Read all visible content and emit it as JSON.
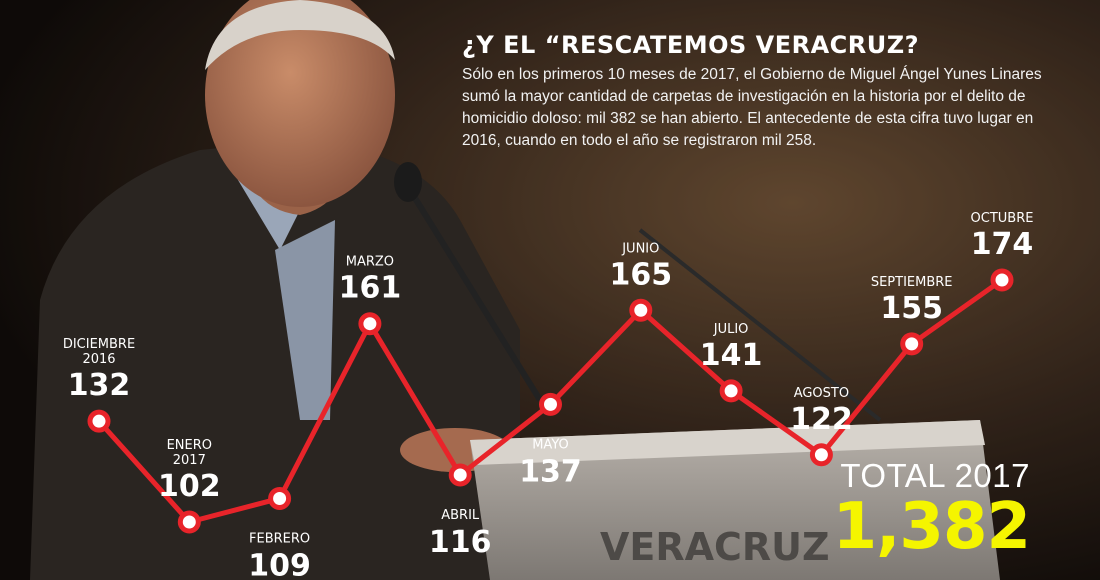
{
  "headline": {
    "title": "¿Y EL “RESCATEMOS VERACRUZ?",
    "body": "Sólo en los primeros 10 meses de 2017, el Gobierno de Miguel Ángel Yunes Linares sumó la mayor cantidad de carpetas de investigación en la historia por el delito de homicidio doloso: mil 382 se han abierto. El antecedente de esta cifra tuvo lugar en 2016, cuando en todo el año se registraron mil 258."
  },
  "podium_text": "VERACRUZ",
  "chart_data": {
    "type": "line",
    "categories": [
      [
        "DICIEMBRE",
        "2016"
      ],
      [
        "ENERO",
        "2017"
      ],
      [
        "FEBRERO"
      ],
      [
        "MARZO"
      ],
      [
        "ABRIL"
      ],
      [
        "MAYO"
      ],
      [
        "JUNIO"
      ],
      [
        "JULIO"
      ],
      [
        "AGOSTO"
      ],
      [
        "SEPTIEMBRE"
      ],
      [
        "OCTUBRE"
      ]
    ],
    "values": [
      132,
      102,
      109,
      161,
      116,
      137,
      165,
      141,
      122,
      155,
      174
    ],
    "label_positions": [
      "above",
      "above",
      "below",
      "above",
      "below",
      "below",
      "above",
      "above",
      "above",
      "above",
      "above"
    ],
    "line_color": "#e8242a",
    "marker_fill": "#ffffff"
  },
  "total": {
    "label": "TOTAL 2017",
    "value": "1,382",
    "value_color": "#f5f500"
  }
}
